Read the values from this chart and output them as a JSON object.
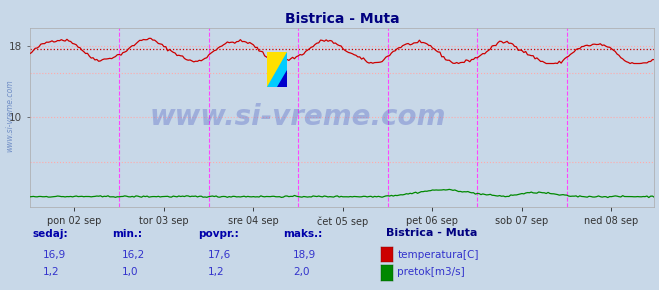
{
  "title": "Bistrica - Muta",
  "title_color": "#000080",
  "bg_color": "#c8d8e8",
  "plot_bg_color": "#c8d8e8",
  "grid_color": "#ffaaaa",
  "grid_style": ":",
  "ylim": [
    0,
    20
  ],
  "ytick_vals": [
    18,
    10
  ],
  "ytick_labels": [
    "18",
    "10"
  ],
  "x_day_labels": [
    "pon 02 sep",
    "tor 03 sep",
    "sre 04 sep",
    "čet 05 sep",
    "pet 06 sep",
    "sob 07 sep",
    "ned 08 sep"
  ],
  "avg_line_y": 17.6,
  "avg_line_color": "#cc0000",
  "avg_line_style": ":",
  "vline_color": "#ff44ff",
  "vline_style": "--",
  "temp_color": "#cc0000",
  "flow_color": "#008800",
  "sidebar_text_color": "#3333cc",
  "sidebar_label_color": "#0000aa",
  "temp_min": 16.2,
  "temp_max": 18.9,
  "temp_avg": 17.6,
  "temp_cur": 16.9,
  "flow_min": 1.0,
  "flow_max": 2.0,
  "flow_avg": 1.2,
  "flow_cur": 1.2,
  "watermark": "www.si-vreme.com",
  "watermark_color": "#3344bb",
  "watermark_alpha": 0.28,
  "watermark_fontsize": 20,
  "sidebar_rotated_text_color": "#5577bb",
  "n_points": 336
}
